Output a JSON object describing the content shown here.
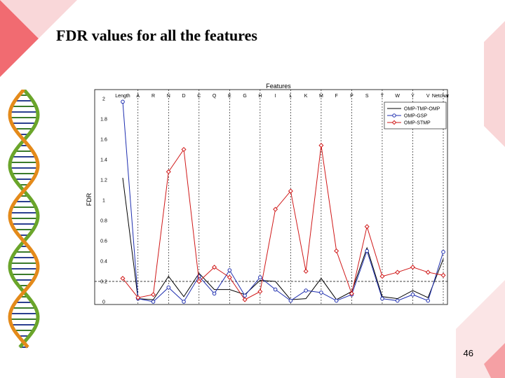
{
  "slide": {
    "title": "FDR values for all the features",
    "page_number": "46"
  },
  "colors": {
    "series_black": "#000000",
    "series_blue": "#1f2fb0",
    "series_red": "#d01818",
    "decor_pink": "#e8505a",
    "dna_green": "#6aa52a",
    "dna_orange": "#e48a1a"
  },
  "chart_data": {
    "type": "line",
    "title": "Features",
    "ylabel": "FDR",
    "xlabel": "",
    "categories": [
      "Length",
      "A",
      "R",
      "N",
      "D",
      "C",
      "Q",
      "E",
      "G",
      "H",
      "I",
      "L",
      "K",
      "M",
      "F",
      "P",
      "S",
      "T",
      "W",
      "Y",
      "V",
      "Netcharge"
    ],
    "ylim": [
      0,
      2
    ],
    "yticks": [
      "0",
      "0.2",
      "0.4",
      "0.6",
      "0.8",
      "1",
      "1.2",
      "1.4",
      "1.6",
      "1.8",
      "2"
    ],
    "threshold_line": 0.2,
    "legend_position": "top-right",
    "series": [
      {
        "name": "OMP-TMP-OMP",
        "color": "#000000",
        "marker": "none",
        "values": [
          1.22,
          0.03,
          0.02,
          0.25,
          0.05,
          0.28,
          0.12,
          0.12,
          0.07,
          0.21,
          0.2,
          0.02,
          0.03,
          0.23,
          0.02,
          0.1,
          0.53,
          0.05,
          0.03,
          0.11,
          0.04,
          0.42
        ]
      },
      {
        "name": "OMP-GSP",
        "color": "#1f2fb0",
        "marker": "circle",
        "values": [
          1.97,
          0.03,
          0.0,
          0.14,
          0.0,
          0.25,
          0.08,
          0.31,
          0.06,
          0.24,
          0.12,
          0.01,
          0.11,
          0.09,
          0.01,
          0.07,
          0.5,
          0.03,
          0.01,
          0.07,
          0.01,
          0.49
        ]
      },
      {
        "name": "OMP-STMP",
        "color": "#d01818",
        "marker": "diamond",
        "values": [
          0.23,
          0.04,
          0.07,
          1.28,
          1.5,
          0.2,
          0.34,
          0.24,
          0.02,
          0.1,
          0.91,
          1.09,
          0.3,
          1.54,
          0.5,
          0.08,
          0.74,
          0.25,
          0.29,
          0.34,
          0.29,
          0.26
        ]
      }
    ]
  }
}
